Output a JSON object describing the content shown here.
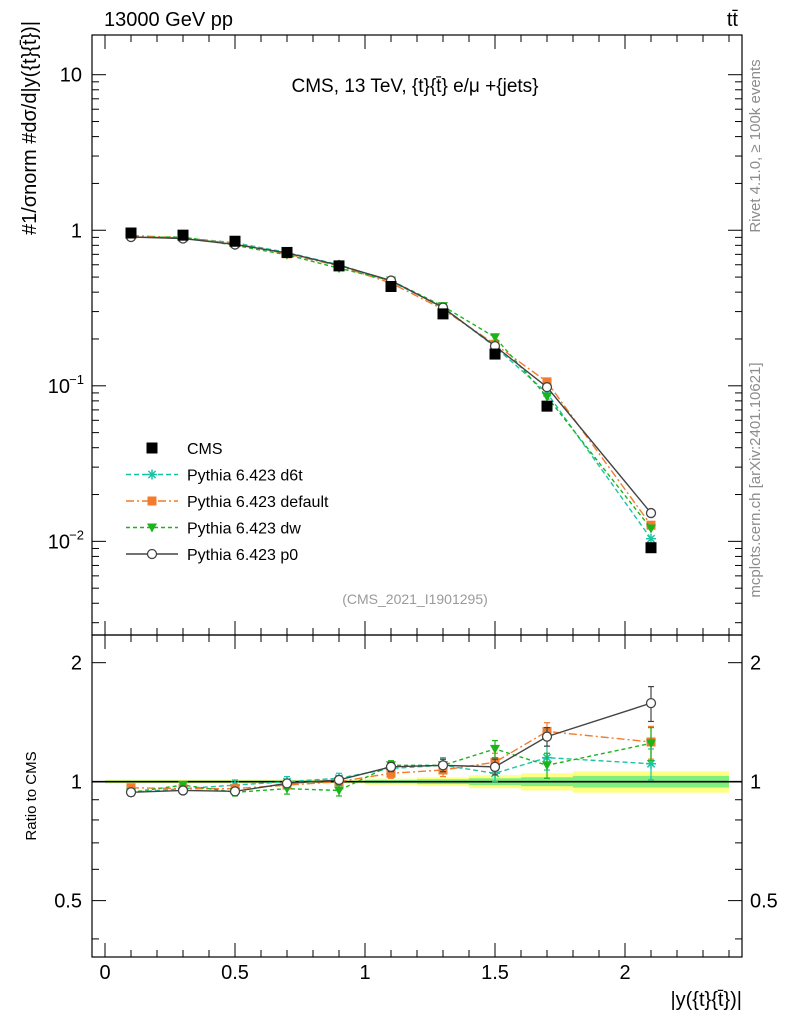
{
  "header": {
    "energy_label": "13000 GeV pp",
    "process_label": "tt̄"
  },
  "side_labels": {
    "rivet": "Rivet 4.1.0, ≥ 100k events",
    "mcplots": "mcplots.cern.ch [arXiv:2401.10621]"
  },
  "chart_data": [
    {
      "type": "line",
      "title": "CMS, 13 TeV, {t}{t̄} e/μ +{jets}",
      "watermark": "(CMS_2021_I1901295)",
      "ylabel": "#1/σnorm #dσ/d|y({t}{t̄})|",
      "yscale": "log",
      "ylim": [
        0.0025,
        18
      ],
      "xlim": [
        -0.05,
        2.45
      ],
      "y_tick_labels": [
        "10",
        "1",
        "10−1",
        "10−2"
      ],
      "x": [
        0.1,
        0.3,
        0.5,
        0.7,
        0.9,
        1.1,
        1.3,
        1.5,
        1.7,
        2.1
      ],
      "data": {
        "name": "CMS",
        "values": [
          0.96,
          0.93,
          0.85,
          0.72,
          0.59,
          0.435,
          0.29,
          0.16,
          0.074,
          0.0091
        ]
      },
      "series": [
        {
          "name": "Pythia 6.423 d6t",
          "color": "#19c4a4",
          "dash": "5,3",
          "marker": "star",
          "values": [
            0.905,
            0.895,
            0.83,
            0.72,
            0.6,
            0.47,
            0.32,
            0.178,
            0.09,
            0.0104
          ]
        },
        {
          "name": "Pythia 6.423 default",
          "color": "#f47a2c",
          "dash": "8,3,2,3",
          "marker": "square",
          "values": [
            0.925,
            0.895,
            0.82,
            0.705,
            0.59,
            0.458,
            0.31,
            0.185,
            0.106,
            0.0127
          ]
        },
        {
          "name": "Pythia 6.423 dw",
          "color": "#1bb41b",
          "dash": "4,3",
          "marker": "triangle-down",
          "values": [
            0.9,
            0.905,
            0.8,
            0.695,
            0.57,
            0.475,
            0.325,
            0.205,
            0.085,
            0.0121
          ]
        },
        {
          "name": "Pythia 6.423 p0",
          "color": "#444444",
          "dash": "",
          "marker": "open-circle",
          "values": [
            0.905,
            0.885,
            0.81,
            0.715,
            0.595,
            0.475,
            0.318,
            0.18,
            0.098,
            0.0152
          ]
        }
      ],
      "legend_position": "lower-left"
    },
    {
      "type": "line",
      "ylabel": "Ratio to CMS",
      "xlabel": "|y({t}{t̄})|",
      "ylim": [
        0.36,
        2.35
      ],
      "y_tick_labels": [
        "0.5",
        "1",
        "2"
      ],
      "x_tick_labels": [
        "0",
        "0.5",
        "1",
        "1.5",
        "2"
      ],
      "x": [
        0.1,
        0.3,
        0.5,
        0.7,
        0.9,
        1.1,
        1.3,
        1.5,
        1.7,
        2.1
      ],
      "bin_edges": [
        0.0,
        0.2,
        0.4,
        0.6,
        0.8,
        1.0,
        1.2,
        1.4,
        1.6,
        1.8,
        2.4
      ],
      "band_outer": [
        0.012,
        0.012,
        0.012,
        0.012,
        0.012,
        0.018,
        0.026,
        0.038,
        0.05,
        0.062
      ],
      "band_inner": [
        0.006,
        0.006,
        0.006,
        0.006,
        0.006,
        0.01,
        0.014,
        0.02,
        0.026,
        0.034
      ],
      "series": [
        {
          "name": "Pythia 6.423 d6t",
          "values": [
            0.94,
            0.96,
            0.98,
            1.0,
            1.02,
            1.08,
            1.1,
            1.05,
            1.15,
            1.11
          ],
          "err": [
            0.02,
            0.03,
            0.03,
            0.03,
            0.03,
            0.04,
            0.05,
            0.05,
            0.08,
            0.1
          ]
        },
        {
          "name": "Pythia 6.423 default",
          "values": [
            0.965,
            0.96,
            0.96,
            0.98,
            1.0,
            1.05,
            1.07,
            1.12,
            1.34,
            1.26
          ],
          "err": [
            0.02,
            0.02,
            0.02,
            0.02,
            0.03,
            0.03,
            0.04,
            0.06,
            0.07,
            0.12
          ]
        },
        {
          "name": "Pythia 6.423 dw",
          "values": [
            0.94,
            0.98,
            0.94,
            0.96,
            0.95,
            1.1,
            1.1,
            1.21,
            1.1,
            1.25
          ],
          "err": [
            0.02,
            0.02,
            0.02,
            0.03,
            0.03,
            0.03,
            0.04,
            0.06,
            0.08,
            0.12
          ]
        },
        {
          "name": "Pythia 6.423 p0",
          "values": [
            0.94,
            0.95,
            0.945,
            0.99,
            1.01,
            1.09,
            1.1,
            1.09,
            1.3,
            1.58
          ],
          "err": [
            0.02,
            0.02,
            0.02,
            0.02,
            0.02,
            0.03,
            0.04,
            0.05,
            0.07,
            0.16
          ]
        }
      ]
    }
  ]
}
